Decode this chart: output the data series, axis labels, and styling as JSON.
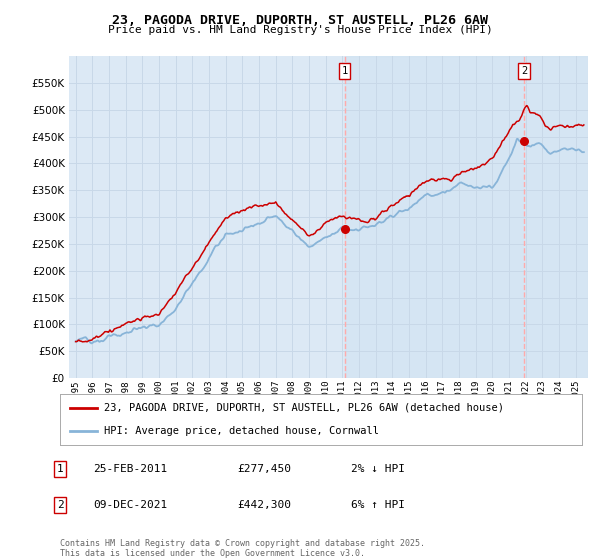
{
  "title": "23, PAGODA DRIVE, DUPORTH, ST AUSTELL, PL26 6AW",
  "subtitle": "Price paid vs. HM Land Registry's House Price Index (HPI)",
  "ylim": [
    0,
    600000
  ],
  "yticks": [
    0,
    50000,
    100000,
    150000,
    200000,
    250000,
    300000,
    350000,
    400000,
    450000,
    500000,
    550000
  ],
  "background_color": "#ffffff",
  "plot_bg_color": "#dce9f5",
  "grid_color": "#c8d8e8",
  "red_line_color": "#cc0000",
  "blue_line_color": "#88b4d8",
  "vline_color": "#ffaaaa",
  "sale1_date": "25-FEB-2011",
  "sale1_price": 277450,
  "sale1_price_str": "£277,450",
  "sale1_hpi_str": "2% ↓ HPI",
  "sale2_date": "09-DEC-2021",
  "sale2_price": 442300,
  "sale2_price_str": "£442,300",
  "sale2_hpi_str": "6% ↑ HPI",
  "legend1": "23, PAGODA DRIVE, DUPORTH, ST AUSTELL, PL26 6AW (detached house)",
  "legend2": "HPI: Average price, detached house, Cornwall",
  "footer": "Contains HM Land Registry data © Crown copyright and database right 2025.\nThis data is licensed under the Open Government Licence v3.0.",
  "vline1_year": 2011.15,
  "vline2_year": 2021.92,
  "marker1_value": 277450,
  "marker2_value": 442300,
  "shaded_alpha": 0.35
}
